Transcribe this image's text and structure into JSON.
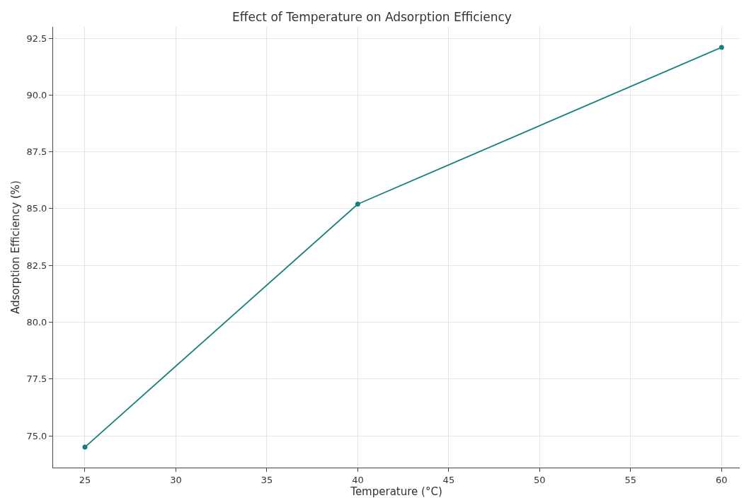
{
  "chart_data": {
    "type": "line",
    "title": "Effect of Temperature on Adsorption Efficiency",
    "xlabel": "Temperature (°C)",
    "ylabel": "Adsorption Efficiency (%)",
    "x": [
      25,
      40,
      60
    ],
    "series": [
      {
        "color": "#17807e",
        "values": [
          74.5,
          85.2,
          92.1
        ]
      }
    ],
    "xlim": [
      23.25,
      61.0
    ],
    "xticks": [
      25,
      30,
      35,
      40,
      45,
      50,
      55,
      60
    ],
    "ylim": [
      73.6,
      93.0
    ],
    "yticks": [
      {
        "value": 75,
        "label": "75.0"
      },
      {
        "value": 77.5,
        "label": "77.5"
      },
      {
        "value": 80,
        "label": "80.0"
      },
      {
        "value": 82.5,
        "label": "82.5"
      },
      {
        "value": 85,
        "label": "85.0"
      },
      {
        "value": 87.5,
        "label": "87.5"
      },
      {
        "value": 90,
        "label": "90.0"
      },
      {
        "value": 92.5,
        "label": "92.5"
      }
    ],
    "grid": true,
    "marker": "circle",
    "line_style": "solid",
    "legend": false
  }
}
